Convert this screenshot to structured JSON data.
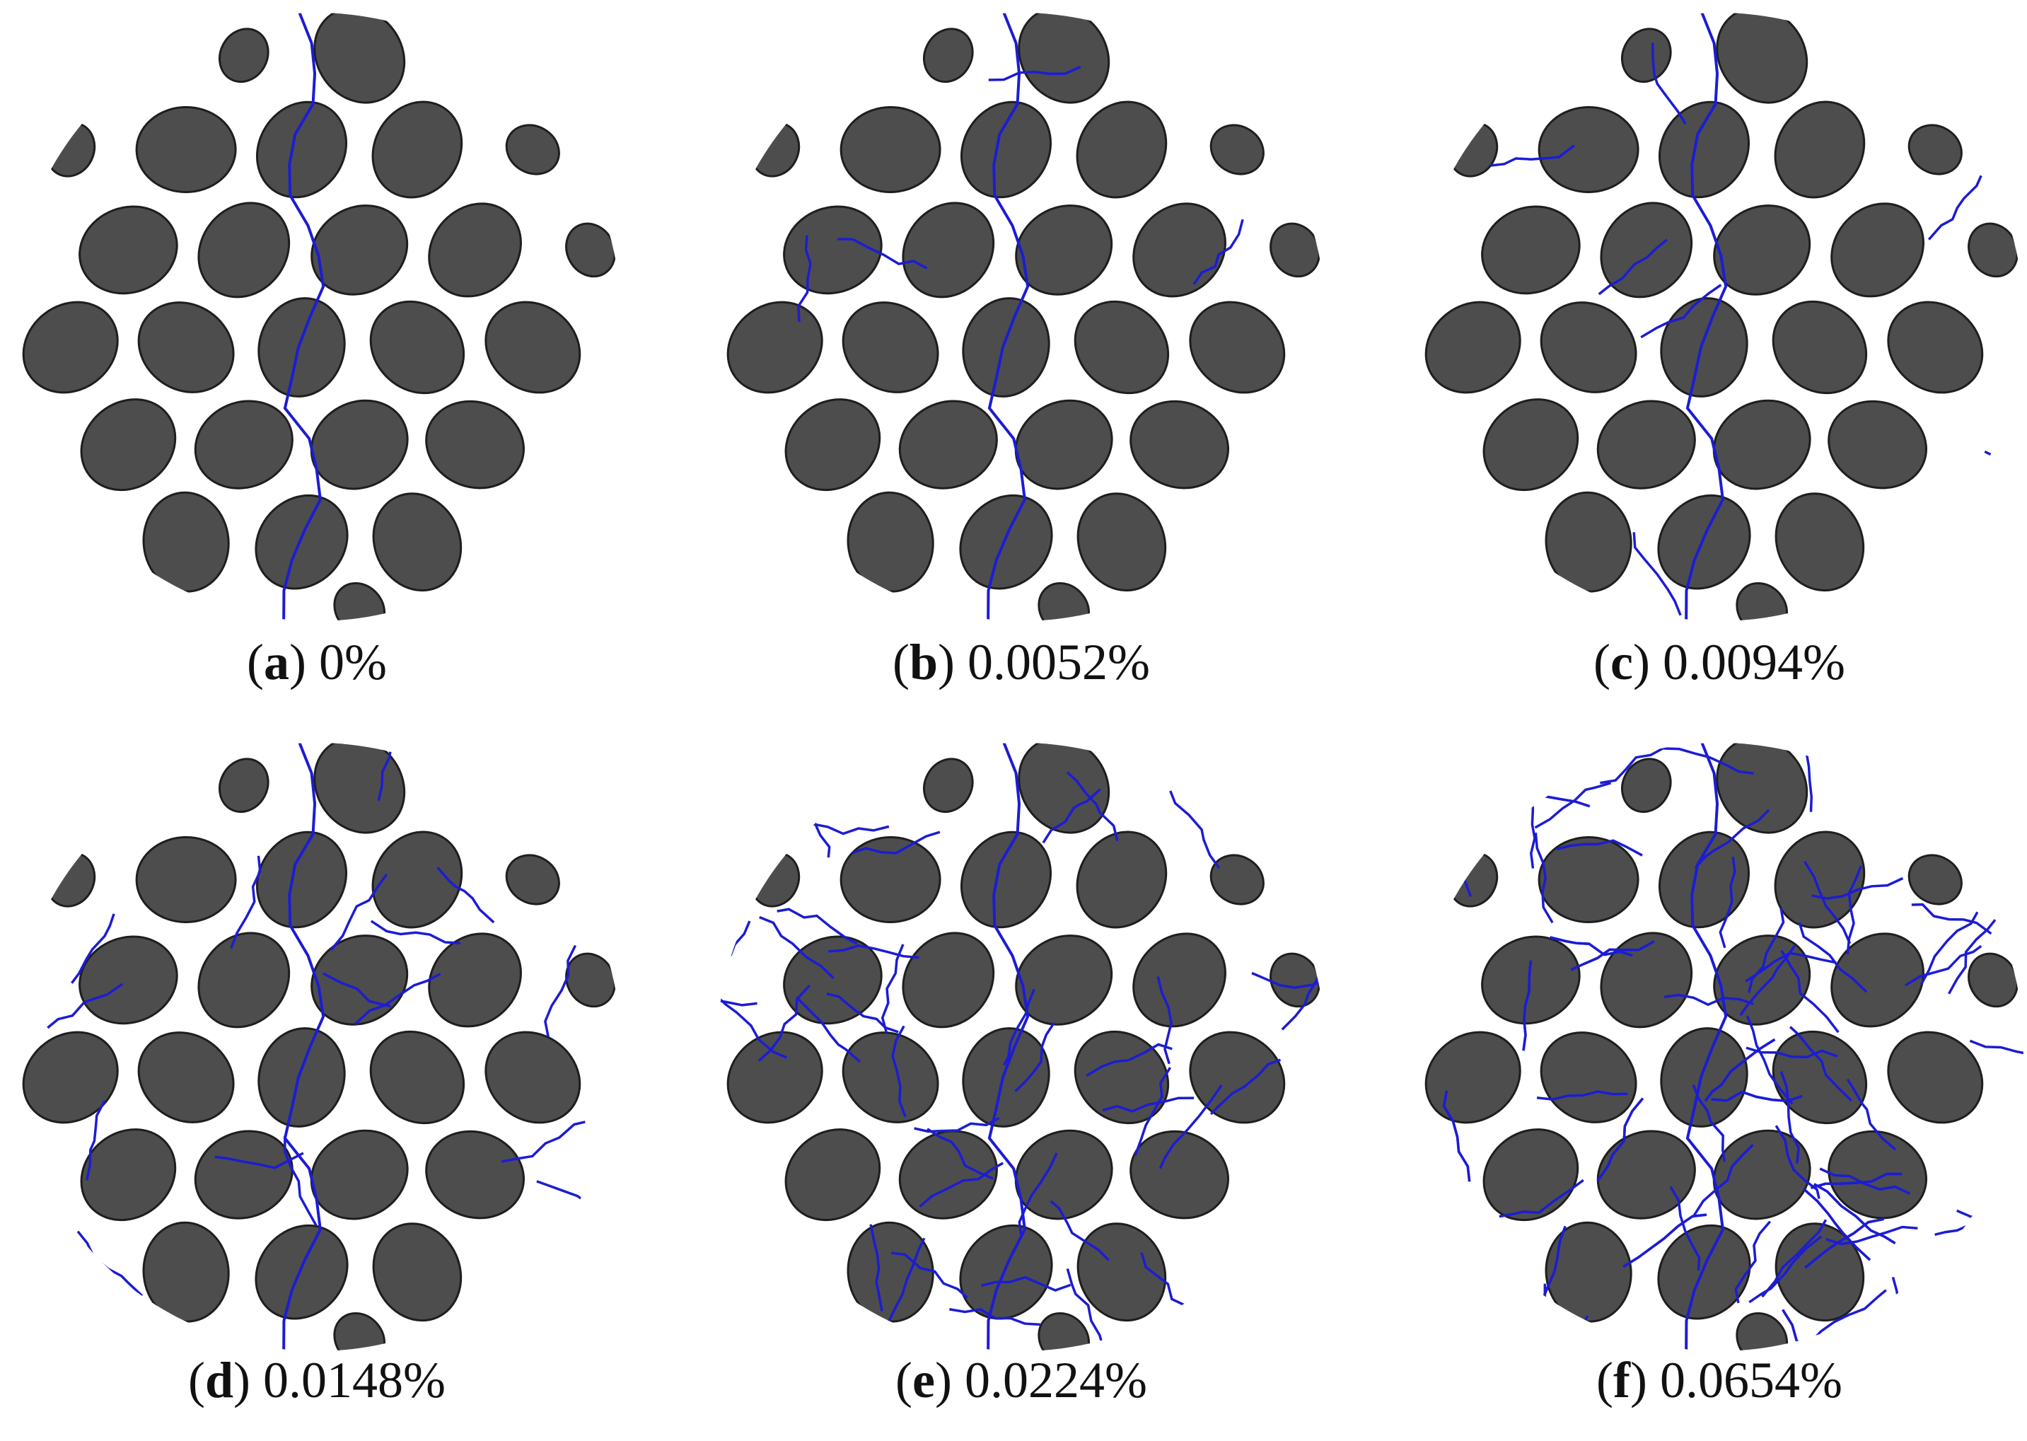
{
  "panels": [
    {
      "caption": [
        "(",
        "a",
        ") 0%"
      ]
    },
    {
      "caption": [
        "(",
        "b",
        ") 0.0052%"
      ]
    },
    {
      "caption": [
        "(",
        "c",
        ") 0.0094%"
      ]
    },
    {
      "caption": [
        "(",
        "d",
        ") 0.0148%"
      ]
    },
    {
      "caption": [
        "(",
        "e",
        ") 0.0224%"
      ]
    },
    {
      "caption": [
        "(",
        "f",
        ") 0.0654%"
      ]
    }
  ]
}
